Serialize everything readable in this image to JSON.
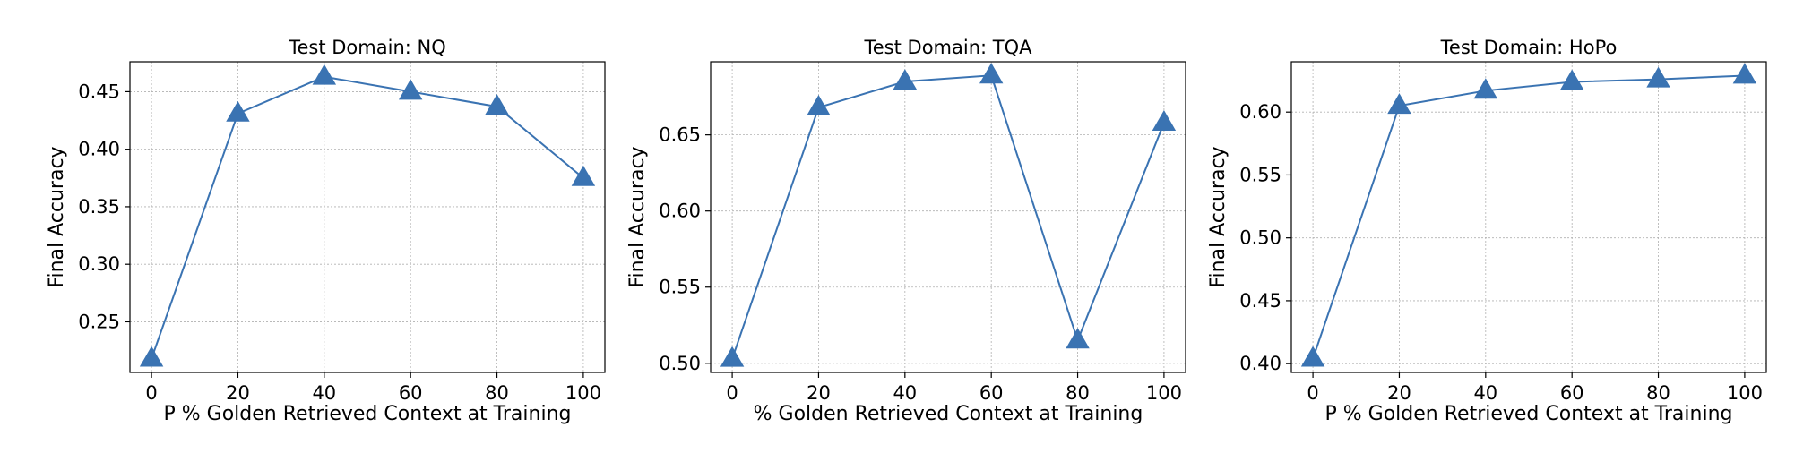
{
  "chart_data": [
    {
      "type": "line",
      "title": "Test Domain: NQ",
      "xlabel": "P % Golden Retrieved Context at Training",
      "ylabel": "Final Accuracy",
      "x": [
        0,
        20,
        40,
        60,
        80,
        100
      ],
      "series": [
        {
          "values": [
            0.218,
            0.431,
            0.463,
            0.45,
            0.437,
            0.375
          ]
        }
      ],
      "xticks": [
        0,
        20,
        40,
        60,
        80,
        100
      ],
      "yticks": [
        0.25,
        0.3,
        0.35,
        0.4,
        0.45
      ],
      "ytick_labels": [
        "0.25",
        "0.30",
        "0.35",
        "0.40",
        "0.45"
      ],
      "xlim": [
        -5,
        105
      ],
      "ylim": [
        0.206,
        0.476
      ],
      "grid": true,
      "marker": "triangle-up",
      "color": "#3a73b2"
    },
    {
      "type": "line",
      "title": "Test Domain: TQA",
      "xlabel": "% Golden Retrieved Context at Training",
      "ylabel": "Final Accuracy",
      "x": [
        0,
        20,
        40,
        60,
        80,
        100
      ],
      "series": [
        {
          "values": [
            0.503,
            0.668,
            0.685,
            0.689,
            0.515,
            0.658
          ]
        }
      ],
      "xticks": [
        0,
        20,
        40,
        60,
        80,
        100
      ],
      "yticks": [
        0.5,
        0.55,
        0.6,
        0.65
      ],
      "ytick_labels": [
        "0.50",
        "0.55",
        "0.60",
        "0.65"
      ],
      "xlim": [
        -5,
        105
      ],
      "ylim": [
        0.494,
        0.698
      ],
      "grid": true,
      "marker": "triangle-up",
      "color": "#3a73b2"
    },
    {
      "type": "line",
      "title": "Test Domain: HoPo",
      "xlabel": "P % Golden Retrieved Context at Training",
      "ylabel": "Final Accuracy",
      "x": [
        0,
        20,
        40,
        60,
        80,
        100
      ],
      "series": [
        {
          "values": [
            0.404,
            0.605,
            0.617,
            0.624,
            0.626,
            0.629
          ]
        }
      ],
      "xticks": [
        0,
        20,
        40,
        60,
        80,
        100
      ],
      "yticks": [
        0.4,
        0.45,
        0.5,
        0.55,
        0.6
      ],
      "ytick_labels": [
        "0.40",
        "0.45",
        "0.50",
        "0.55",
        "0.60"
      ],
      "xlim": [
        -5,
        105
      ],
      "ylim": [
        0.393,
        0.64
      ],
      "grid": true,
      "marker": "triangle-up",
      "color": "#3a73b2"
    }
  ]
}
